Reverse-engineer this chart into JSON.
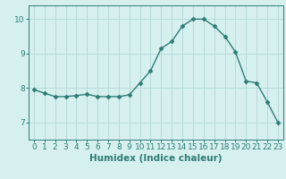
{
  "x": [
    0,
    1,
    2,
    3,
    4,
    5,
    6,
    7,
    8,
    9,
    10,
    11,
    12,
    13,
    14,
    15,
    16,
    17,
    18,
    19,
    20,
    21,
    22,
    23
  ],
  "y": [
    7.95,
    7.85,
    7.75,
    7.75,
    7.78,
    7.82,
    7.75,
    7.75,
    7.75,
    7.8,
    8.15,
    8.5,
    9.15,
    9.35,
    9.8,
    10.0,
    10.0,
    9.8,
    9.5,
    9.05,
    8.2,
    8.15,
    7.6,
    7.0
  ],
  "line_color": "#2e7d72",
  "marker": "D",
  "marker_size": 2.5,
  "background_color": "#d6f0f0",
  "grid_color": "#b8dada",
  "xlabel": "Humidex (Indice chaleur)",
  "ylim": [
    6.5,
    10.4
  ],
  "xlim": [
    -0.5,
    23.5
  ],
  "yticks": [
    7,
    8,
    9,
    10
  ],
  "xticks": [
    0,
    1,
    2,
    3,
    4,
    5,
    6,
    7,
    8,
    9,
    10,
    11,
    12,
    13,
    14,
    15,
    16,
    17,
    18,
    19,
    20,
    21,
    22,
    23
  ],
  "label_fontsize": 7.5,
  "tick_fontsize": 6.5
}
